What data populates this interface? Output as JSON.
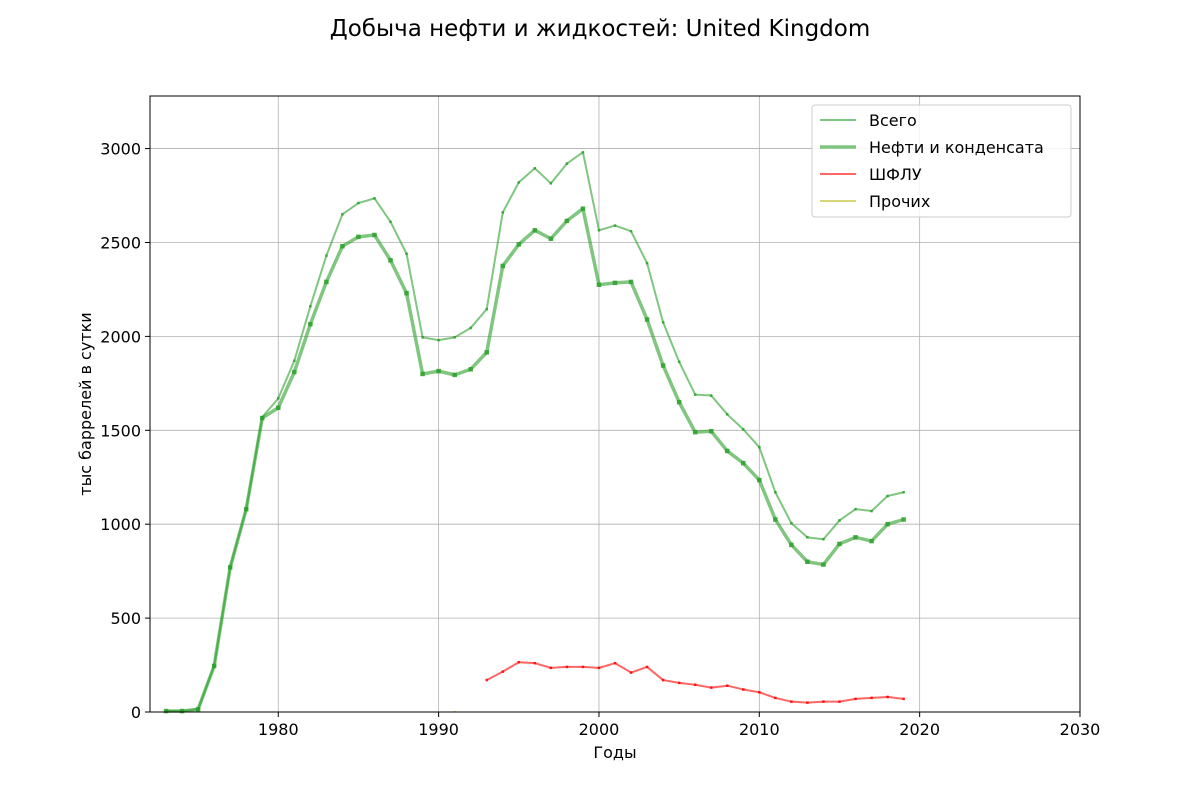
{
  "chart_data": {
    "type": "line",
    "title": "Добыча нефти и жидкостей: United Kingdom",
    "xlabel": "Годы",
    "ylabel": "тыс баррелей в сутки",
    "xlim": [
      1972,
      2030
    ],
    "ylim": [
      0,
      3280
    ],
    "xticks": [
      1980,
      1990,
      2000,
      2010,
      2020,
      2030
    ],
    "yticks": [
      0,
      500,
      1000,
      1500,
      2000,
      2500,
      3000
    ],
    "grid": true,
    "legend_position": "top-right",
    "series": [
      {
        "name": "Всего",
        "color": "#2ca02c",
        "x": [
          1973,
          1974,
          1975,
          1976,
          1977,
          1978,
          1979,
          1980,
          1981,
          1982,
          1983,
          1984,
          1985,
          1986,
          1987,
          1988,
          1989,
          1990,
          1991,
          1992,
          1993,
          1994,
          1995,
          1996,
          1997,
          1998,
          1999,
          2000,
          2001,
          2002,
          2003,
          2004,
          2005,
          2006,
          2007,
          2008,
          2009,
          2010,
          2011,
          2012,
          2013,
          2014,
          2015,
          2016,
          2017,
          2018,
          2019
        ],
        "values": [
          5,
          5,
          15,
          245,
          770,
          1080,
          1570,
          1670,
          1870,
          2160,
          2430,
          2650,
          2710,
          2735,
          2610,
          2440,
          1995,
          1980,
          1995,
          2045,
          2145,
          2660,
          2820,
          2895,
          2815,
          2920,
          2980,
          2565,
          2590,
          2560,
          2390,
          2075,
          1865,
          1690,
          1685,
          1585,
          1505,
          1410,
          1170,
          1005,
          930,
          920,
          1020,
          1080,
          1070,
          1150,
          1170
        ]
      },
      {
        "name": "Нефти и конденсата",
        "color": "#2ca02c",
        "x": [
          1973,
          1974,
          1975,
          1976,
          1977,
          1978,
          1979,
          1980,
          1981,
          1982,
          1983,
          1984,
          1985,
          1986,
          1987,
          1988,
          1989,
          1990,
          1991,
          1992,
          1993,
          1994,
          1995,
          1996,
          1997,
          1998,
          1999,
          2000,
          2001,
          2002,
          2003,
          2004,
          2005,
          2006,
          2007,
          2008,
          2009,
          2010,
          2011,
          2012,
          2013,
          2014,
          2015,
          2016,
          2017,
          2018,
          2019
        ],
        "values": [
          5,
          5,
          15,
          245,
          770,
          1080,
          1565,
          1620,
          1810,
          2065,
          2290,
          2480,
          2530,
          2540,
          2405,
          2230,
          1800,
          1815,
          1795,
          1825,
          1915,
          2375,
          2490,
          2565,
          2520,
          2615,
          2680,
          2275,
          2285,
          2290,
          2090,
          1845,
          1650,
          1490,
          1495,
          1390,
          1325,
          1235,
          1025,
          890,
          800,
          785,
          895,
          930,
          910,
          1000,
          1025
        ]
      },
      {
        "name": "ШФЛУ",
        "color": "#ff0000",
        "x": [
          1993,
          1994,
          1995,
          1996,
          1997,
          1998,
          1999,
          2000,
          2001,
          2002,
          2003,
          2004,
          2005,
          2006,
          2007,
          2008,
          2009,
          2010,
          2011,
          2012,
          2013,
          2014,
          2015,
          2016,
          2017,
          2018,
          2019
        ],
        "values": [
          170,
          215,
          265,
          260,
          235,
          240,
          240,
          235,
          260,
          210,
          240,
          170,
          155,
          145,
          130,
          140,
          120,
          105,
          75,
          55,
          50,
          55,
          55,
          70,
          75,
          80,
          70
        ]
      },
      {
        "name": "Прочих",
        "color": "#bcbd22",
        "x": [
          1991
        ],
        "values": [
          1
        ]
      }
    ]
  }
}
